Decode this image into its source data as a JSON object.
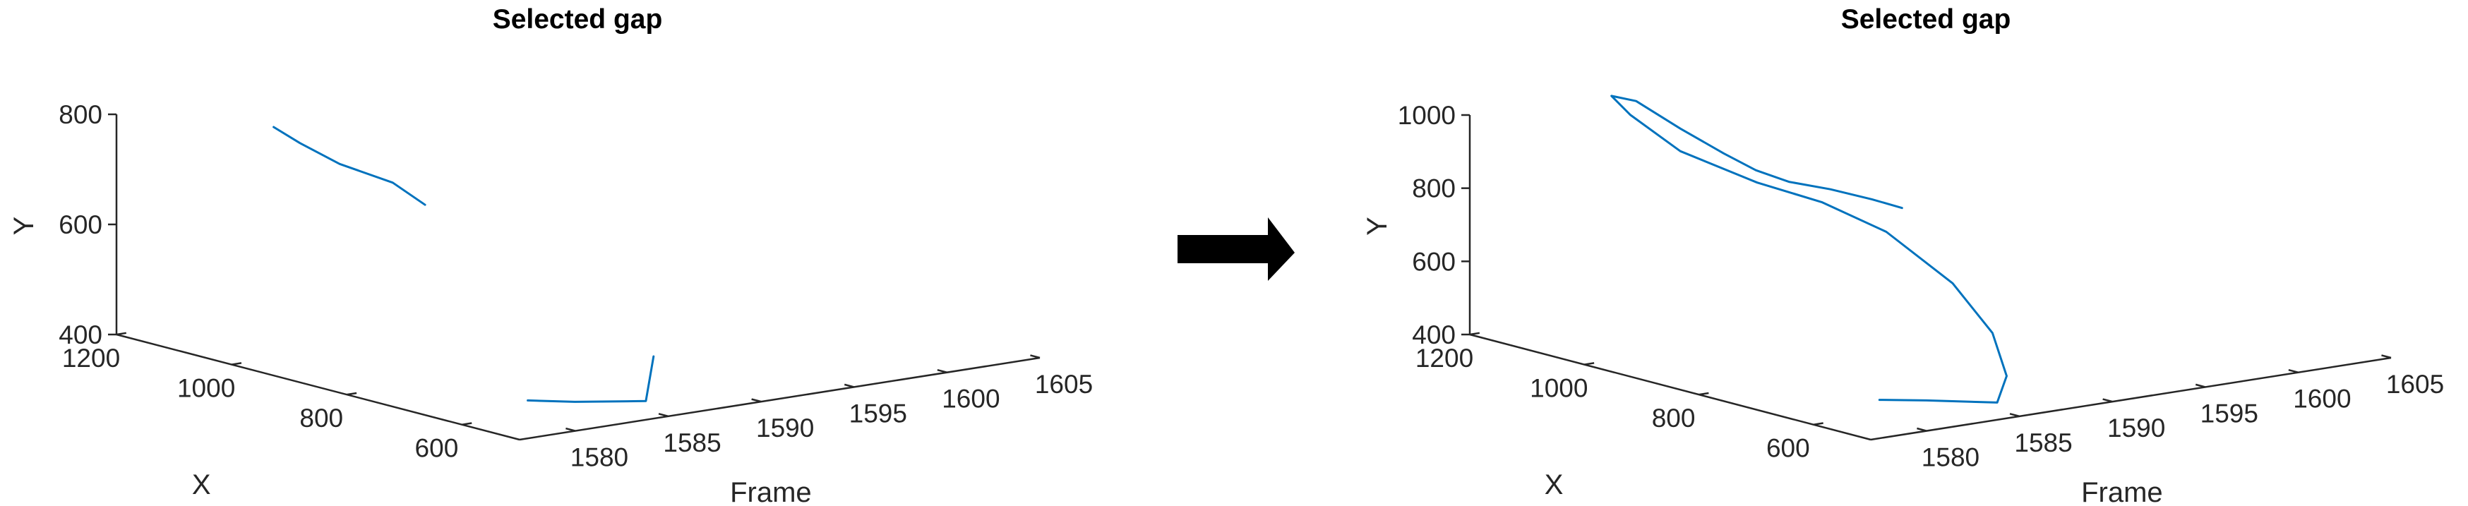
{
  "chart_data": [
    {
      "type": "line",
      "projection": "3d",
      "title": "Selected gap",
      "xlabel": "X",
      "ylabel": "Frame",
      "zlabel": "Y",
      "x_ticks": [
        1200,
        1000,
        800,
        600
      ],
      "frame_ticks": [
        1580,
        1585,
        1590,
        1595,
        1600,
        1605
      ],
      "y_ticks": [
        400,
        600,
        800
      ],
      "xlim": [
        500,
        1200
      ],
      "framelim": [
        1577,
        1605
      ],
      "ylim": [
        400,
        800
      ],
      "grid": false,
      "series_color": "#0072BD",
      "segments": [
        [
          {
            "x": 660,
            "frame": 1582.4,
            "y": 399
          },
          {
            "x": 630,
            "frame": 1584.0,
            "y": 396
          },
          {
            "x": 555,
            "frame": 1585.5,
            "y": 410
          },
          {
            "x": 548,
            "frame": 1585.7,
            "y": 492
          }
        ],
        [
          {
            "x": 1040,
            "frame": 1580.5,
            "y": 802
          },
          {
            "x": 1020,
            "frame": 1581.3,
            "y": 774
          },
          {
            "x": 990,
            "frame": 1582.5,
            "y": 738
          },
          {
            "x": 930,
            "frame": 1583.5,
            "y": 715
          },
          {
            "x": 890,
            "frame": 1584.0,
            "y": 683
          }
        ]
      ]
    },
    {
      "type": "line",
      "projection": "3d",
      "title": "Selected gap",
      "xlabel": "X",
      "ylabel": "Frame",
      "zlabel": "Y",
      "x_ticks": [
        1200,
        1000,
        800,
        600
      ],
      "frame_ticks": [
        1580,
        1585,
        1590,
        1595,
        1600,
        1605
      ],
      "y_ticks": [
        400,
        600,
        800,
        1000
      ],
      "xlim": [
        500,
        1200
      ],
      "framelim": [
        1577,
        1605
      ],
      "ylim": [
        400,
        1000
      ],
      "grid": false,
      "series_color": "#0072BD",
      "segments": [
        [
          {
            "x": 660,
            "frame": 1582.4,
            "y": 400
          },
          {
            "x": 630,
            "frame": 1584.0,
            "y": 398
          },
          {
            "x": 555,
            "frame": 1585.5,
            "y": 411
          },
          {
            "x": 545,
            "frame": 1585.7,
            "y": 486
          },
          {
            "x": 560,
            "frame": 1585.4,
            "y": 600
          },
          {
            "x": 610,
            "frame": 1584.8,
            "y": 720
          },
          {
            "x": 700,
            "frame": 1584.0,
            "y": 830
          },
          {
            "x": 790,
            "frame": 1583.3,
            "y": 880
          },
          {
            "x": 880,
            "frame": 1582.6,
            "y": 902
          },
          {
            "x": 985,
            "frame": 1581.7,
            "y": 952
          },
          {
            "x": 1040,
            "frame": 1580.7,
            "y": 1037
          },
          {
            "x": 1050,
            "frame": 1580.0,
            "y": 1090
          },
          {
            "x": 1020,
            "frame": 1580.4,
            "y": 1085
          },
          {
            "x": 975,
            "frame": 1581.4,
            "y": 1020
          },
          {
            "x": 935,
            "frame": 1582.5,
            "y": 960
          },
          {
            "x": 905,
            "frame": 1583.3,
            "y": 920
          },
          {
            "x": 870,
            "frame": 1584.0,
            "y": 897
          },
          {
            "x": 830,
            "frame": 1585.0,
            "y": 885
          },
          {
            "x": 790,
            "frame": 1586.0,
            "y": 866
          },
          {
            "x": 760,
            "frame": 1586.7,
            "y": 849
          }
        ]
      ]
    }
  ]
}
